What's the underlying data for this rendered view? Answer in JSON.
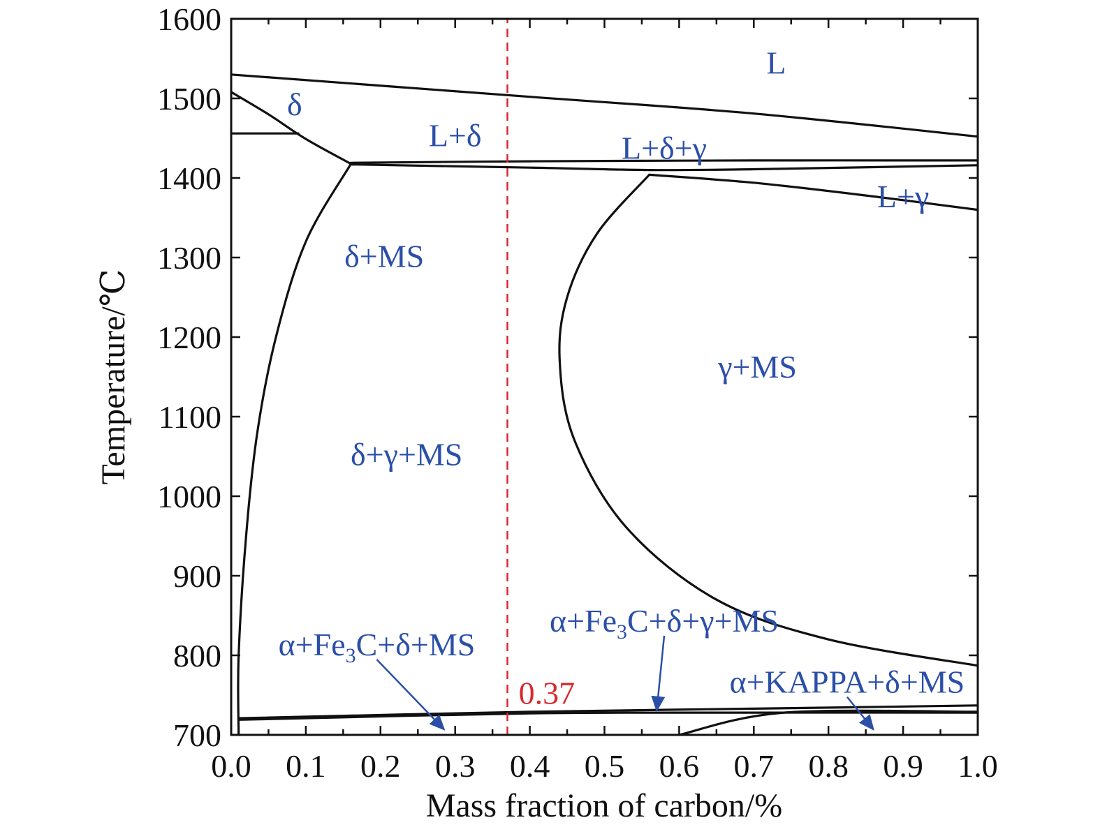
{
  "chart_data": {
    "type": "line",
    "title": "",
    "xlabel": "Mass fraction of carbon/%",
    "ylabel": "Temperature/℃",
    "xlim": [
      0.0,
      1.0
    ],
    "ylim": [
      700,
      1600
    ],
    "grid": false,
    "x_ticks": [
      {
        "value": 0.0,
        "label": "0.0"
      },
      {
        "value": 0.1,
        "label": "0.1"
      },
      {
        "value": 0.2,
        "label": "0.2"
      },
      {
        "value": 0.3,
        "label": "0.3"
      },
      {
        "value": 0.4,
        "label": "0.4"
      },
      {
        "value": 0.5,
        "label": "0.5"
      },
      {
        "value": 0.6,
        "label": "0.6"
      },
      {
        "value": 0.7,
        "label": "0.7"
      },
      {
        "value": 0.8,
        "label": "0.8"
      },
      {
        "value": 0.9,
        "label": "0.9"
      },
      {
        "value": 1.0,
        "label": "1.0"
      }
    ],
    "y_ticks": [
      {
        "value": 700,
        "label": "700"
      },
      {
        "value": 800,
        "label": "800"
      },
      {
        "value": 900,
        "label": "900"
      },
      {
        "value": 1000,
        "label": "1000"
      },
      {
        "value": 1100,
        "label": "1100"
      },
      {
        "value": 1200,
        "label": "1200"
      },
      {
        "value": 1300,
        "label": "1300"
      },
      {
        "value": 1400,
        "label": "1400"
      },
      {
        "value": 1500,
        "label": "1500"
      },
      {
        "value": 1600,
        "label": "1600"
      }
    ],
    "series": [
      {
        "name": "liquidus",
        "x": [
          0.0,
          0.4,
          0.7,
          1.0
        ],
        "y": [
          1530,
          1502,
          1481,
          1452
        ]
      },
      {
        "name": "delta-upper-boundary",
        "x": [
          0.0,
          0.05,
          0.1,
          0.16
        ],
        "y": [
          1508,
          1480,
          1449,
          1418
        ]
      },
      {
        "name": "delta-lower-boundary",
        "x": [
          0.0,
          0.09
        ],
        "y": [
          1456,
          1456
        ]
      },
      {
        "name": "peritectic-upper",
        "x": [
          0.16,
          0.4,
          0.7,
          1.0
        ],
        "y": [
          1419,
          1421,
          1422,
          1422
        ]
      },
      {
        "name": "peritectic-lower",
        "x": [
          0.16,
          0.4,
          0.56,
          0.7,
          1.0
        ],
        "y": [
          1417,
          1413,
          1410,
          1411,
          1416
        ]
      },
      {
        "name": "gamma-liquid-boundary",
        "x": [
          0.56,
          0.7,
          0.85,
          1.0
        ],
        "y": [
          1404,
          1394,
          1378,
          1360
        ]
      },
      {
        "name": "delta-ms-boundary",
        "x": [
          0.16,
          0.1,
          0.06,
          0.035,
          0.02,
          0.01,
          0.01
        ],
        "y": [
          1417,
          1320,
          1200,
          1080,
          950,
          800,
          700
        ]
      },
      {
        "name": "gamma-ms-boundary",
        "x": [
          0.56,
          0.49,
          0.45,
          0.44,
          0.46,
          0.53,
          0.65,
          0.8,
          1.0
        ],
        "y": [
          1404,
          1330,
          1250,
          1170,
          1070,
          960,
          870,
          820,
          787
        ]
      },
      {
        "name": "eutectoid-upper",
        "x": [
          0.01,
          0.4,
          0.7,
          1.0
        ],
        "y": [
          721,
          729,
          733,
          737
        ]
      },
      {
        "name": "eutectoid-lower",
        "x": [
          0.01,
          0.4,
          0.7,
          1.0
        ],
        "y": [
          719,
          727,
          728,
          728
        ]
      },
      {
        "name": "kappa-boundary",
        "x": [
          0.6,
          0.74,
          1.0
        ],
        "y": [
          700,
          728,
          729
        ]
      },
      {
        "name": "composition-0.37",
        "x": [
          0.37,
          0.37
        ],
        "y": [
          700,
          1600
        ],
        "style": "dashed",
        "color": "#d8282e"
      }
    ],
    "annotations": [
      {
        "text": "L",
        "x": 0.73,
        "y": 1545
      },
      {
        "text": "δ",
        "x": 0.085,
        "y": 1493
      },
      {
        "text": "L+δ",
        "x": 0.3,
        "y": 1454
      },
      {
        "text": "L+δ+γ",
        "x": 0.58,
        "y": 1438
      },
      {
        "text": "L+γ",
        "x": 0.9,
        "y": 1377
      },
      {
        "text": "δ+MS",
        "x": 0.205,
        "y": 1302
      },
      {
        "text": "γ+MS",
        "x": 0.705,
        "y": 1163
      },
      {
        "text": "δ+γ+MS",
        "x": 0.235,
        "y": 1053
      },
      {
        "text": "α+Fe3C+δ+γ+MS",
        "x": 0.58,
        "y": 844,
        "arrow_to": [
          0.57,
          731
        ]
      },
      {
        "text": "α+Fe3C+δ+MS",
        "x": 0.195,
        "y": 814,
        "arrow_to": [
          0.285,
          707
        ]
      },
      {
        "text": "α+KAPPA+δ+MS",
        "x": 0.825,
        "y": 767,
        "arrow_to": [
          0.86,
          707
        ]
      },
      {
        "text": "0.37",
        "x": 0.385,
        "y": 753,
        "color": "#d8282e"
      }
    ]
  }
}
